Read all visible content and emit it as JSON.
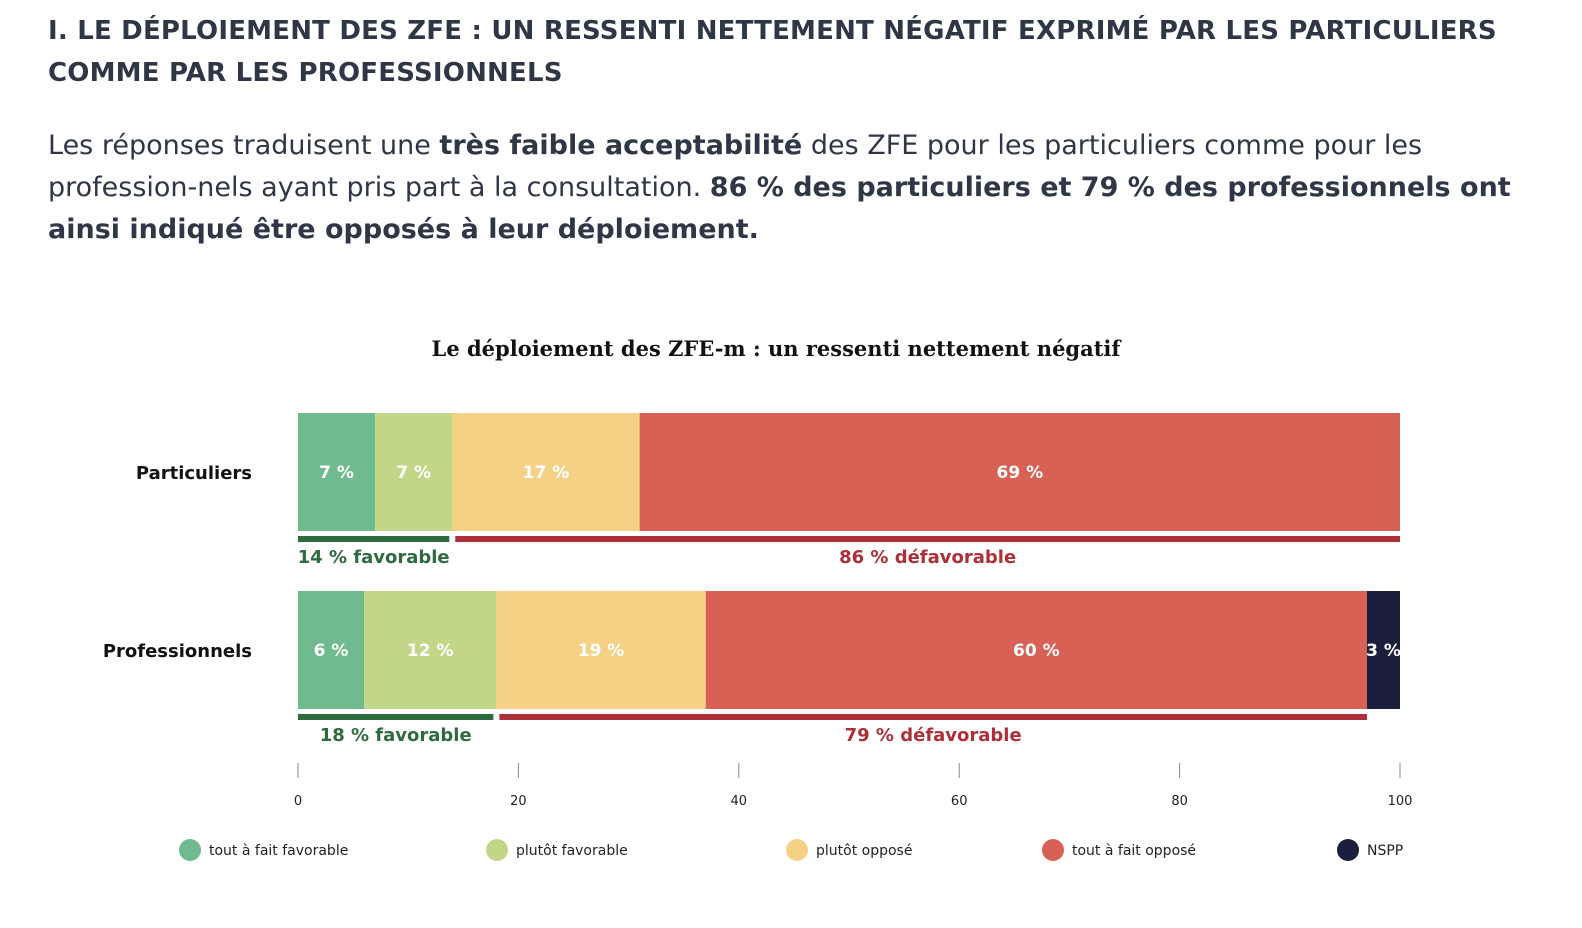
{
  "section": {
    "heading": "I. LE DÉPLOIEMENT DES ZFE : UN RESSENTI NETTEMENT NÉGATIF EXPRIMÉ PAR LES PARTICULIERS COMME PAR LES PROFESSIONNELS",
    "intro": [
      {
        "text": "Les réponses traduisent une ",
        "bold": false
      },
      {
        "text": "très faible acceptabilité",
        "bold": true
      },
      {
        "text": " des ZFE pour les particuliers comme pour les profession-nels ayant pris part à la consultation. ",
        "bold": false
      },
      {
        "text": "86 % des particuliers et 79 % des professionnels ont ainsi indiqué être opposés à leur déploiement.",
        "bold": true
      }
    ]
  },
  "chart_data": {
    "type": "bar",
    "orientation": "horizontal",
    "stacked": true,
    "title": "Le déploiement des ZFE-m : un ressenti nettement négatif",
    "categories": [
      "Particuliers",
      "Professionnels"
    ],
    "series": [
      {
        "name": "tout à fait favorable",
        "color": "#6fba8f",
        "values": [
          7,
          6
        ],
        "labels": [
          "7 %",
          "6 %"
        ]
      },
      {
        "name": "plutôt favorable",
        "color": "#c2d687",
        "values": [
          7,
          12
        ],
        "labels": [
          "7 %",
          "12 %"
        ]
      },
      {
        "name": "plutôt opposé",
        "color": "#f4d184",
        "values": [
          17,
          19
        ],
        "labels": [
          "17 %",
          "19 %"
        ]
      },
      {
        "name": "tout à fait opposé",
        "color": "#d66154",
        "values": [
          69,
          60
        ],
        "labels": [
          "69 %",
          "60 %"
        ]
      },
      {
        "name": "NSPP",
        "color": "#1b1f3c",
        "values": [
          0,
          3
        ],
        "labels": [
          "",
          "3 %"
        ]
      }
    ],
    "groups": [
      [
        {
          "from": 0,
          "to": 14,
          "label": "14 % favorable",
          "color": "#2e6b3f"
        },
        {
          "from": 14,
          "to": 100,
          "label": "86 % défavorable",
          "color": "#ad2f37"
        }
      ],
      [
        {
          "from": 0,
          "to": 18,
          "label": "18 %  favorable",
          "color": "#2e6b3f"
        },
        {
          "from": 18,
          "to": 97,
          "label": "79 % défavorable",
          "color": "#ad2f37"
        }
      ]
    ],
    "xlim": [
      0,
      100
    ],
    "xticks": [
      0,
      20,
      40,
      60,
      80,
      100
    ],
    "grid": false,
    "legend_position": "bottom"
  }
}
